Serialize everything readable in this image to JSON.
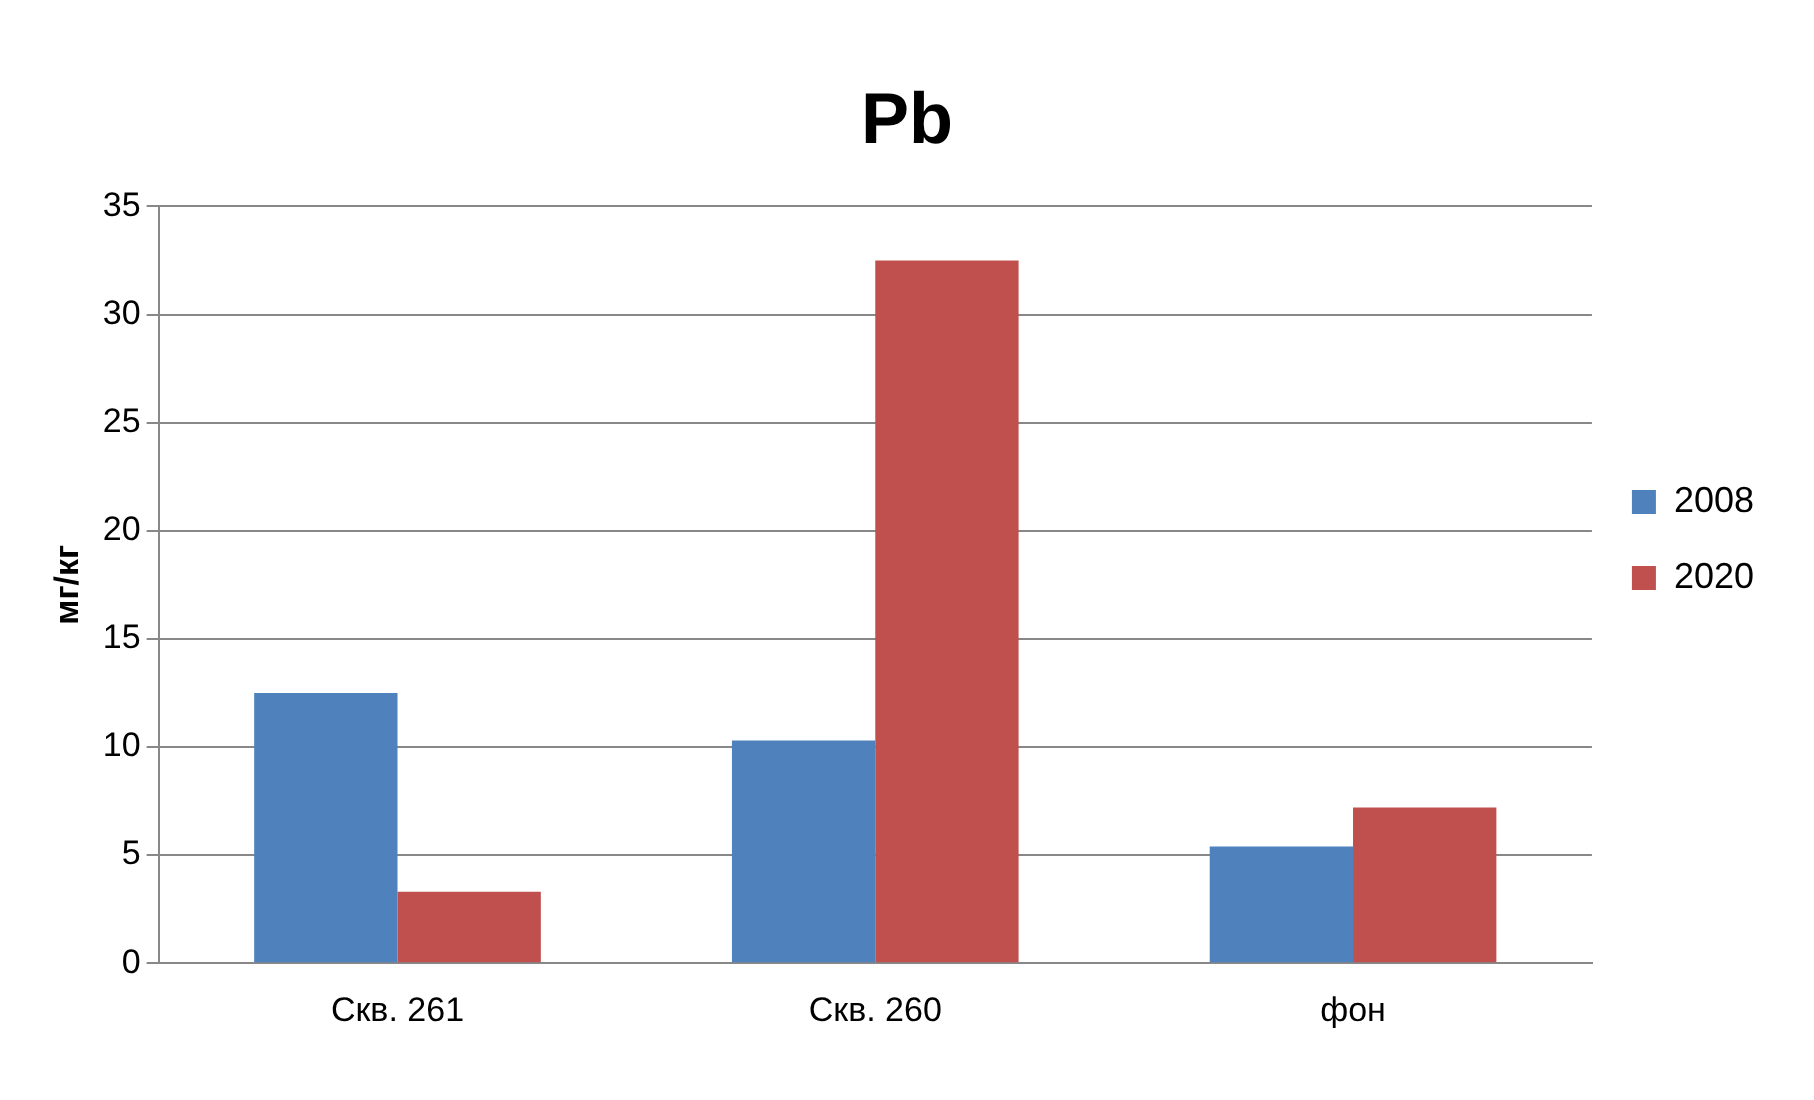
{
  "chart_data": {
    "type": "bar",
    "title": "Pb",
    "ylabel": "мг/кг",
    "categories": [
      "Скв. 261",
      "Скв. 260",
      "фон"
    ],
    "series": [
      {
        "name": "2008",
        "color": "#4f81bd",
        "values": [
          12.5,
          10.3,
          5.4
        ]
      },
      {
        "name": "2020",
        "color": "#c0504d",
        "values": [
          3.3,
          32.5,
          7.2
        ]
      }
    ],
    "ylim": [
      0,
      35
    ],
    "yticks": [
      0,
      5,
      10,
      15,
      20,
      25,
      30,
      35
    ],
    "grid": "y",
    "legend": "right"
  }
}
